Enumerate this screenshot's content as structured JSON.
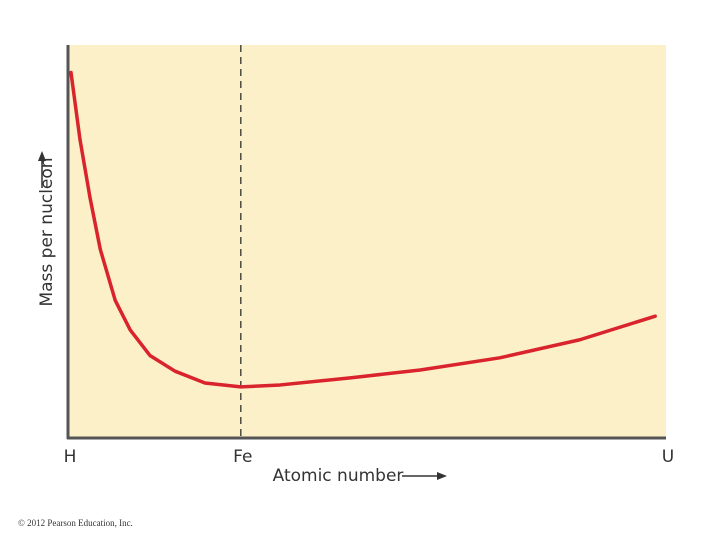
{
  "chart_data": {
    "type": "line",
    "x_label": "Atomic number",
    "y_label": "Mass per nucleon",
    "footer": "© 2012 Pearson Education, Inc.",
    "xlim": [
      0,
      100
    ],
    "ylim": [
      0,
      100
    ],
    "xticks": [
      {
        "value": 0,
        "label": "H"
      },
      {
        "value": 28.9,
        "label": "Fe",
        "dashed": true
      },
      {
        "value": 100,
        "label": "U"
      }
    ],
    "background": "#fcf0c8",
    "series": [
      {
        "color": "#d9232d",
        "x": [
          0.5,
          2,
          3.7,
          5.4,
          7.9,
          10.4,
          13.7,
          17.9,
          22.9,
          28.9,
          35.5,
          47.2,
          58.9,
          72.2,
          85.6,
          98.2
        ],
        "values": [
          93,
          76,
          61,
          48,
          35,
          27.5,
          21,
          17,
          14,
          13,
          13.5,
          15.3,
          17.3,
          20.4,
          25,
          31
        ]
      }
    ]
  }
}
